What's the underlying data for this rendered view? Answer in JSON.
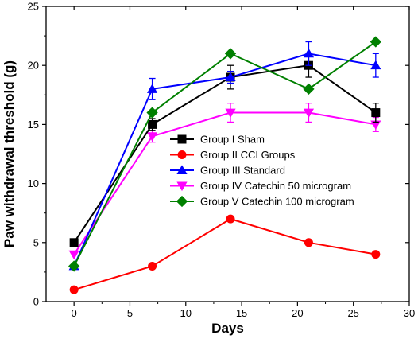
{
  "chart_data": {
    "type": "line",
    "title": "",
    "xlabel": "Days",
    "ylabel": "Paw withdrawal threshold (g)",
    "xlim": [
      -2.5,
      30
    ],
    "ylim": [
      0,
      25
    ],
    "xticks": [
      0,
      5,
      10,
      15,
      20,
      25,
      30
    ],
    "yticks": [
      0,
      5,
      10,
      15,
      20,
      25
    ],
    "grid": false,
    "legend_position": "center-right",
    "x": [
      0,
      7,
      14,
      21,
      27
    ],
    "series": [
      {
        "name": "Group I Sham",
        "color": "#000000",
        "marker": "square",
        "values": [
          5,
          15,
          19,
          20,
          16
        ],
        "errors": [
          0,
          0.5,
          1.0,
          1.0,
          0.8
        ]
      },
      {
        "name": "Group II CCI Groups",
        "color": "#ff0000",
        "marker": "circle",
        "values": [
          1,
          3,
          7,
          5,
          4
        ],
        "errors": [
          0,
          0,
          0,
          0,
          0
        ]
      },
      {
        "name": "Group III Standard",
        "color": "#0000ff",
        "marker": "triangle-up",
        "values": [
          3,
          18,
          19,
          21,
          20
        ],
        "errors": [
          0,
          0.9,
          0.5,
          1.0,
          1.0
        ]
      },
      {
        "name": "Group IV Catechin 50 microgram",
        "color": "#ff00ff",
        "marker": "triangle-down",
        "values": [
          4,
          14,
          16,
          16,
          15
        ],
        "errors": [
          0,
          0.5,
          0.8,
          0.8,
          0.6
        ]
      },
      {
        "name": "Group V Catechin 100 microgram",
        "color": "#008000",
        "marker": "diamond",
        "values": [
          3,
          16,
          21,
          18,
          22
        ],
        "errors": [
          0,
          0,
          0,
          0,
          0
        ]
      }
    ]
  }
}
